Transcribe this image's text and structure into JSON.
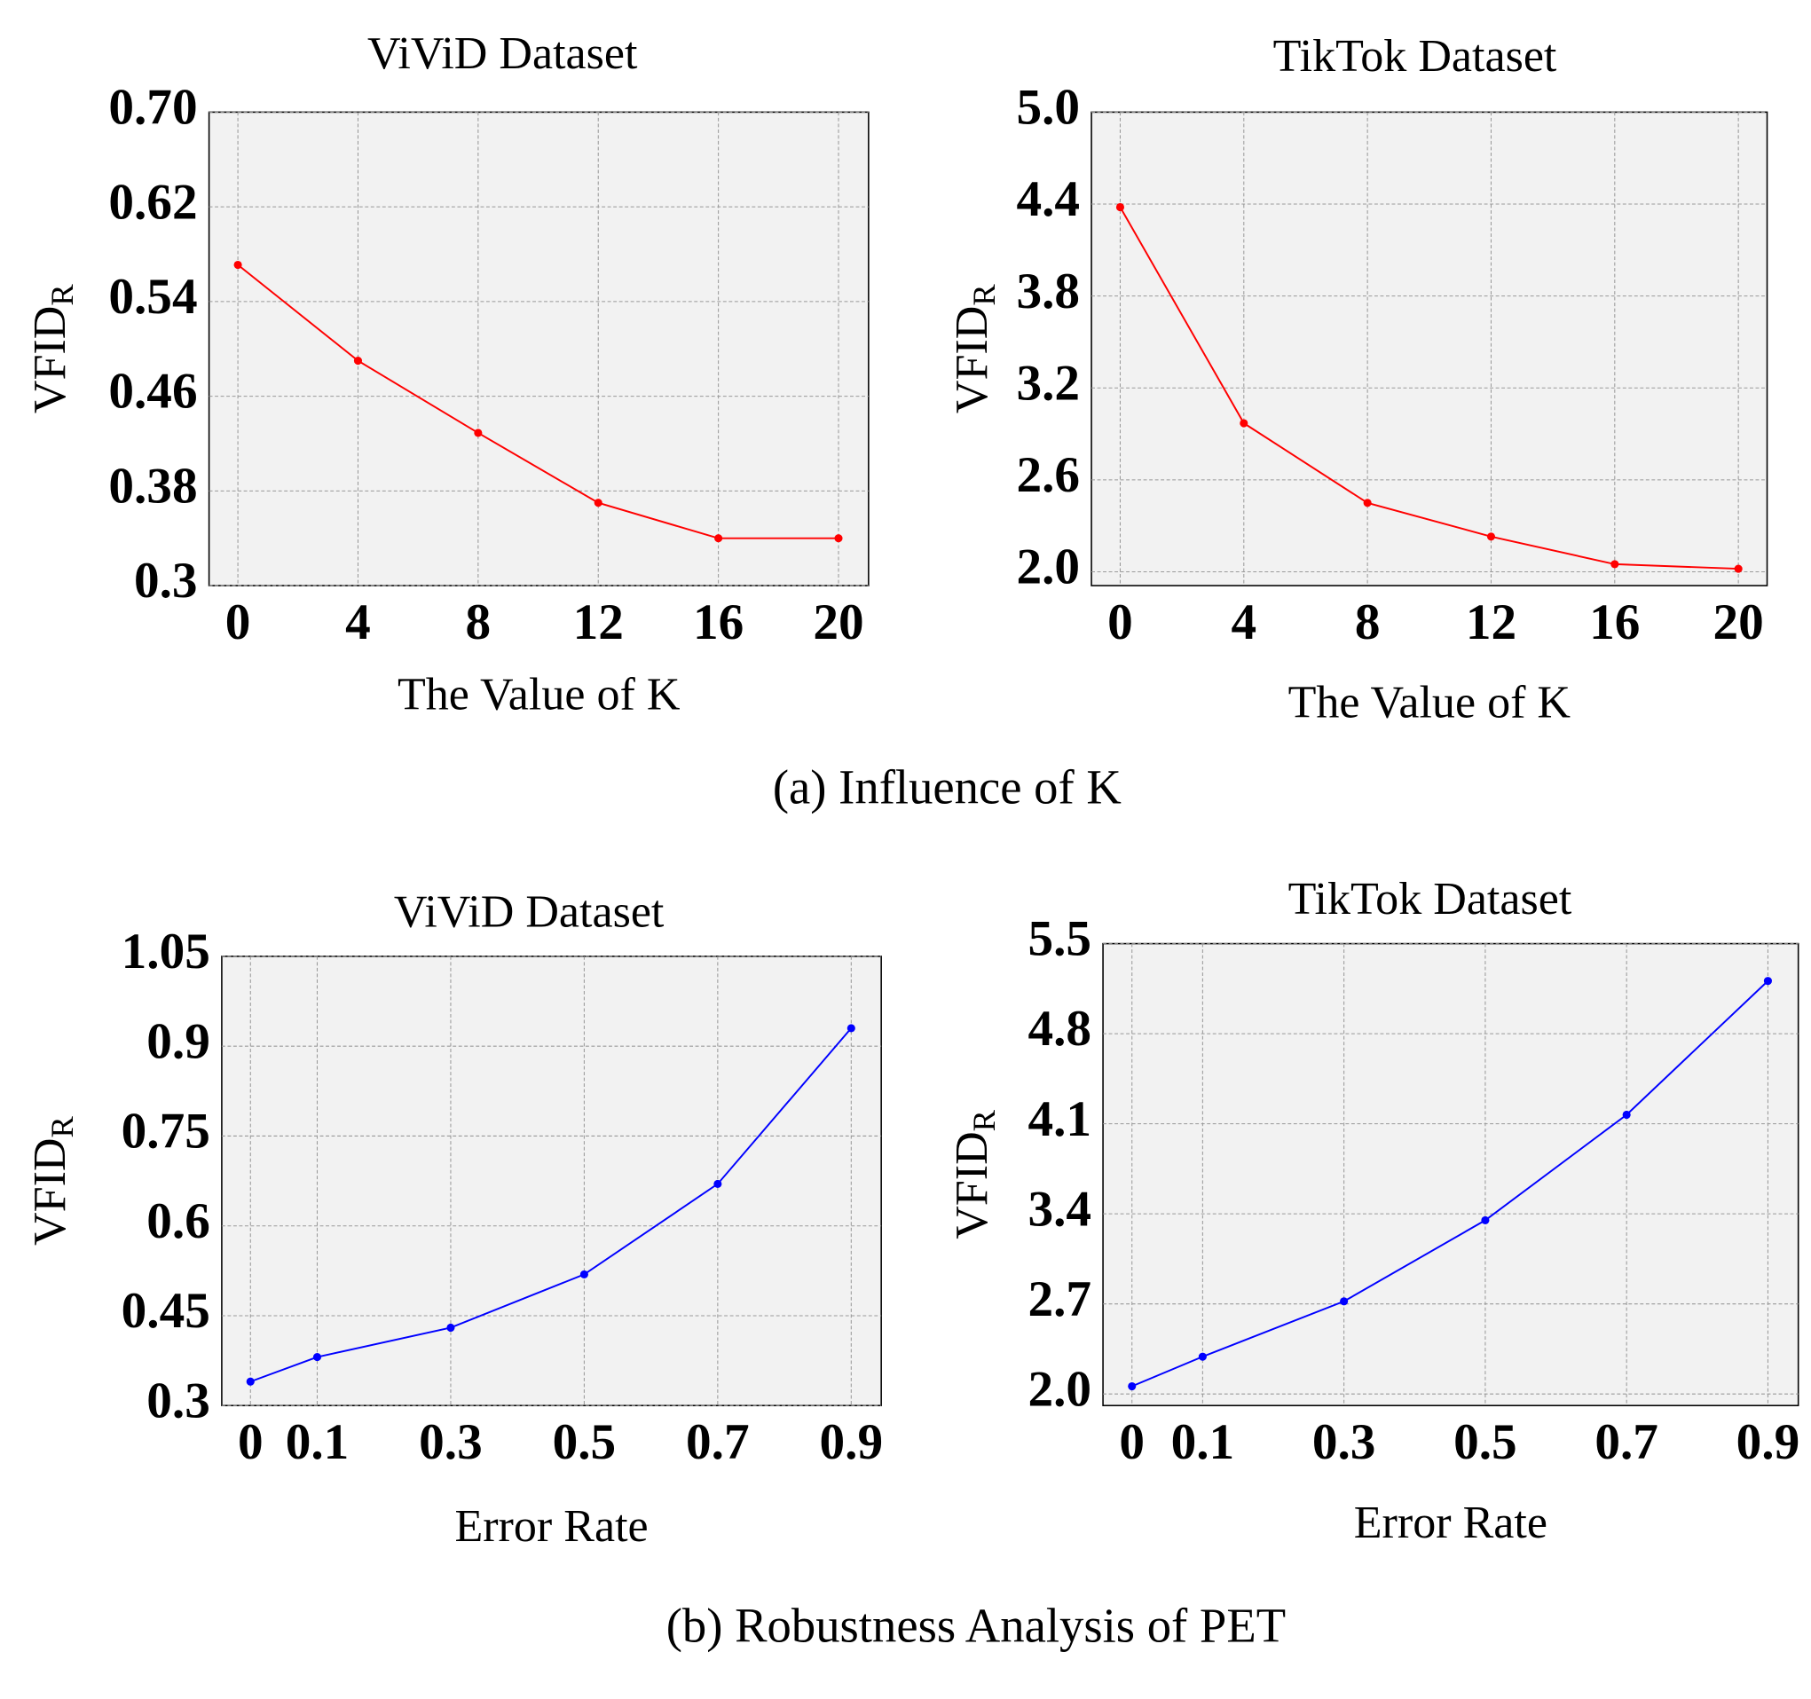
{
  "chart_data": [
    {
      "type": "line",
      "title": "ViViD Dataset",
      "xlabel": "The Value of K",
      "ylabel": "VFID",
      "ylabel_subscript": "R",
      "x": [
        0,
        4,
        8,
        12,
        16,
        20
      ],
      "series": [
        {
          "color": "#ff0000",
          "values": [
            0.571,
            0.49,
            0.429,
            0.37,
            0.34,
            0.34
          ]
        }
      ],
      "xlim": [
        -0.96,
        21
      ],
      "xticks": [
        0,
        4,
        8,
        12,
        16,
        20
      ],
      "ylim": [
        0.3,
        0.7
      ],
      "yticks": [
        0.3,
        0.38,
        0.46,
        0.54,
        0.62,
        {
          "value": 0.7,
          "label": "0.70"
        }
      ],
      "grid": true
    },
    {
      "type": "line",
      "title": "TikTok Dataset",
      "xlabel": "The Value of K",
      "ylabel": "VFID",
      "ylabel_subscript": "R",
      "x": [
        0,
        4,
        8,
        12,
        16,
        20
      ],
      "series": [
        {
          "color": "#ff0000",
          "values": [
            4.38,
            2.97,
            2.45,
            2.23,
            2.05,
            2.02
          ]
        }
      ],
      "xlim": [
        -0.93,
        20.93
      ],
      "xticks": [
        0,
        4,
        8,
        12,
        16,
        20
      ],
      "ylim": [
        1.91,
        5.0
      ],
      "yticks": [
        {
          "value": 2.0,
          "label": "2.0"
        },
        2.6,
        3.2,
        3.8,
        4.4,
        {
          "value": 5.0,
          "label": "5.0"
        }
      ],
      "grid": true
    },
    {
      "type": "line",
      "title": "ViViD Dataset",
      "xlabel": "Error Rate",
      "ylabel": "VFID",
      "ylabel_subscript": "R",
      "x": [
        0,
        0.1,
        0.3,
        0.5,
        0.7,
        0.9
      ],
      "series": [
        {
          "color": "#0000ff",
          "values": [
            0.34,
            0.381,
            0.43,
            0.519,
            0.67,
            0.93
          ]
        }
      ],
      "xlim": [
        -0.043,
        0.945
      ],
      "xticks": [
        0,
        0.1,
        0.3,
        0.5,
        0.7,
        0.9
      ],
      "ylim": [
        0.3,
        1.05
      ],
      "yticks": [
        0.3,
        0.45,
        0.6,
        0.75,
        0.9,
        1.05
      ],
      "grid": true
    },
    {
      "type": "line",
      "title": "TikTok Dataset",
      "xlabel": "Error Rate",
      "ylabel": "VFID",
      "ylabel_subscript": "R",
      "x": [
        0,
        0.1,
        0.3,
        0.5,
        0.7,
        0.9
      ],
      "series": [
        {
          "color": "#0000ff",
          "values": [
            2.06,
            2.29,
            2.72,
            3.35,
            4.17,
            5.21
          ]
        }
      ],
      "xlim": [
        -0.041,
        0.943
      ],
      "xticks": [
        0,
        0.1,
        0.3,
        0.5,
        0.7,
        0.9
      ],
      "ylim": [
        1.91,
        5.5
      ],
      "yticks": [
        {
          "value": 2.0,
          "label": "2.0"
        },
        2.7,
        3.4,
        4.1,
        4.8,
        5.5
      ],
      "grid": true
    }
  ],
  "captions": [
    "(a) Influence of K",
    "(b) Robustness Analysis of PET"
  ]
}
